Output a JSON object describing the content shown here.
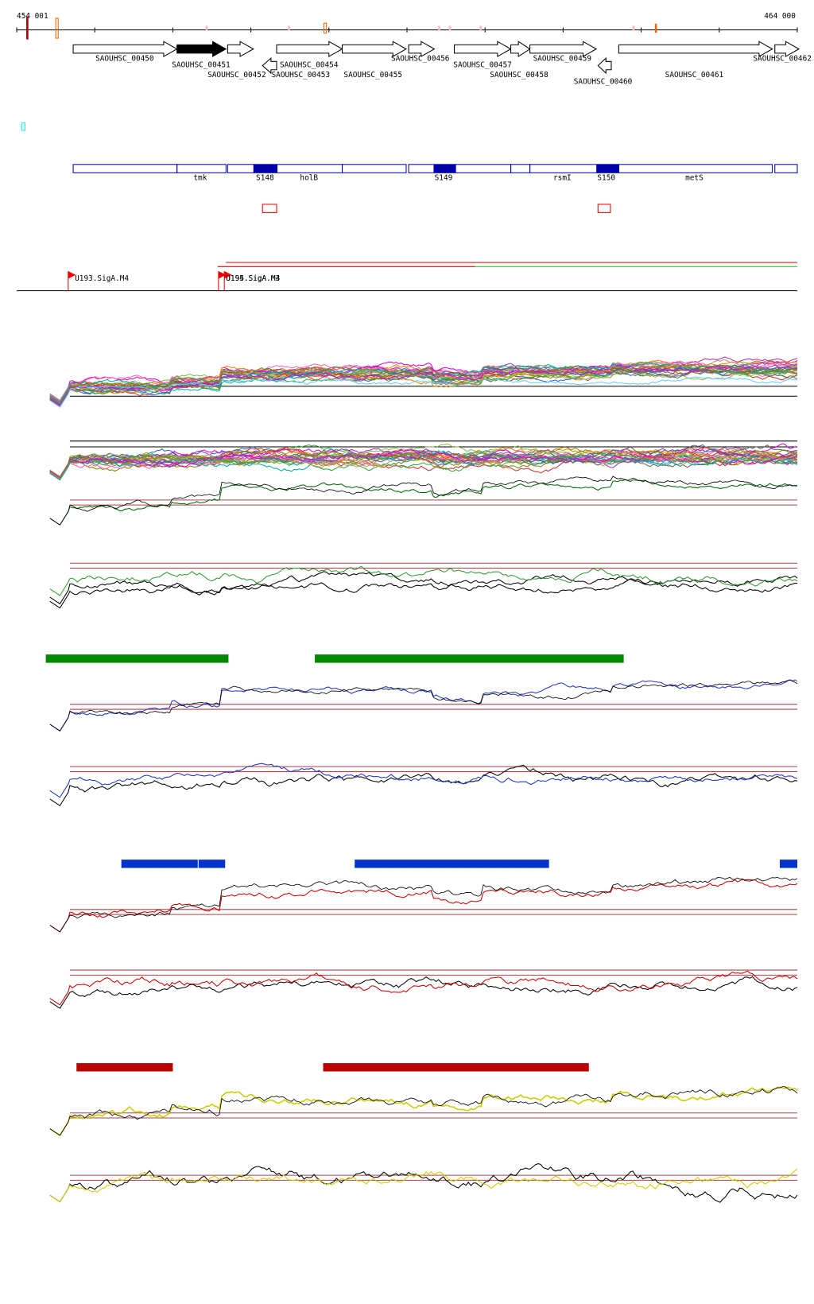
{
  "ruler": {
    "start": "454 001",
    "end": "464 000"
  },
  "genes": [
    "SAOUHSC_00450",
    "SAOUHSC_00451",
    "SAOUHSC_00452",
    "SAOUHSC_00453",
    "SAOUHSC_00454",
    "SAOUHSC_00455",
    "SAOUHSC_00456",
    "SAOUHSC_00457",
    "SAOUHSC_00458",
    "SAOUHSC_00459",
    "SAOUHSC_00460",
    "SAOUHSC_00461",
    "SAOUHSC_00462"
  ],
  "features": [
    "tmk",
    "S148",
    "holB",
    "S149",
    "rsmI",
    "S150",
    "metS"
  ],
  "tss": [
    "U193.SigA.M4",
    "U194.SigA.M4",
    "U195.SigA.M3"
  ]
}
